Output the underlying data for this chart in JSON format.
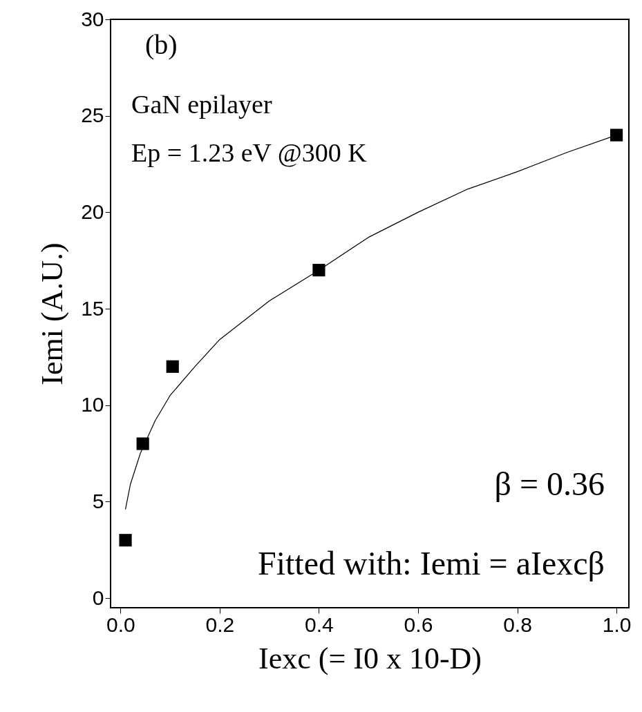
{
  "chart_data": {
    "type": "scatter",
    "xlabel": "Iexc (= I0 x 10-D)",
    "ylabel": "Iemi (A.U.)",
    "annotations": [
      "(b)",
      "GaN epilayer",
      "Ep = 1.23 eV @300 K",
      "β = 0.36",
      "Fitted with: Iemi = aIexcβ"
    ],
    "xlim": [
      -0.02,
      1.025
    ],
    "ylim": [
      -0.5,
      30
    ],
    "xticks": [
      {
        "value": 0,
        "label": "0.0"
      },
      0.2,
      0.4,
      0.6,
      0.8,
      {
        "value": 1,
        "label": "1.0"
      }
    ],
    "yticks": [
      0,
      5,
      10,
      15,
      20,
      25,
      30
    ],
    "grid": false,
    "series": [
      {
        "type": "scatter",
        "color": "#000000",
        "marker": "square",
        "x": [
          0.01,
          0.045,
          0.105,
          0.4,
          1.0
        ],
        "values": [
          3,
          8,
          12,
          17,
          24
        ]
      },
      {
        "type": "line",
        "color": "#000000",
        "line_style": "solid",
        "x": [
          0.01,
          0.02,
          0.04,
          0.07,
          0.1,
          0.15,
          0.2,
          0.3,
          0.4,
          0.5,
          0.6,
          0.7,
          0.8,
          0.9,
          1.0
        ],
        "values": [
          4.6,
          5.9,
          7.5,
          9.2,
          10.5,
          12.0,
          13.4,
          15.4,
          17.0,
          18.7,
          20.0,
          21.2,
          22.1,
          23.1,
          24.0
        ]
      }
    ]
  }
}
